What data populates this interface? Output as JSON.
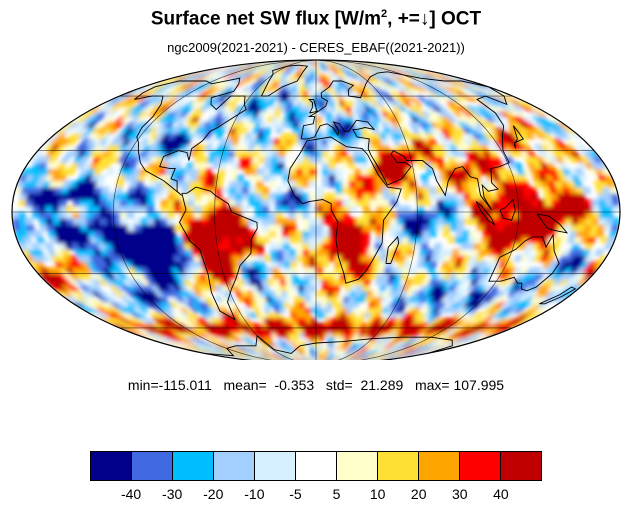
{
  "title": {
    "main": "Surface net SW flux [W/m",
    "sup": "2",
    "rest": ", +=↓]  OCT"
  },
  "subtitle": "ngc2009(2021-2021) - CERES_EBAF((2021-2021))",
  "stats": {
    "text": "min=-115.011   mean=  -0.353   std=  21.289   max= 107.995",
    "min": -115.011,
    "mean": -0.353,
    "std": 21.289,
    "max": 107.995
  },
  "map": {
    "projection": "Mollweide",
    "variable": "Surface net SW flux difference",
    "month": "OCT",
    "regions_high": [
      "South America",
      "southern Africa",
      "Maritime Continent",
      "Southern Ocean ring",
      "Arabia"
    ],
    "regions_low": [
      "southeast Pacific stratocumulus",
      "tropical Pacific",
      "Indian Ocean",
      "Pacific ITCZ"
    ]
  },
  "colorbar": {
    "levels": [
      -40,
      -30,
      -20,
      -10,
      -5,
      5,
      10,
      20,
      30,
      40
    ],
    "labels": [
      "-40",
      "-30",
      "-20",
      "-10",
      "-5",
      "5",
      "10",
      "20",
      "30",
      "40"
    ],
    "colors": [
      "#00008b",
      "#4169e1",
      "#00bfff",
      "#a3cfff",
      "#d6f0ff",
      "#ffffff",
      "#ffffcc",
      "#ffe135",
      "#ffa500",
      "#ff0000",
      "#c00000"
    ]
  }
}
